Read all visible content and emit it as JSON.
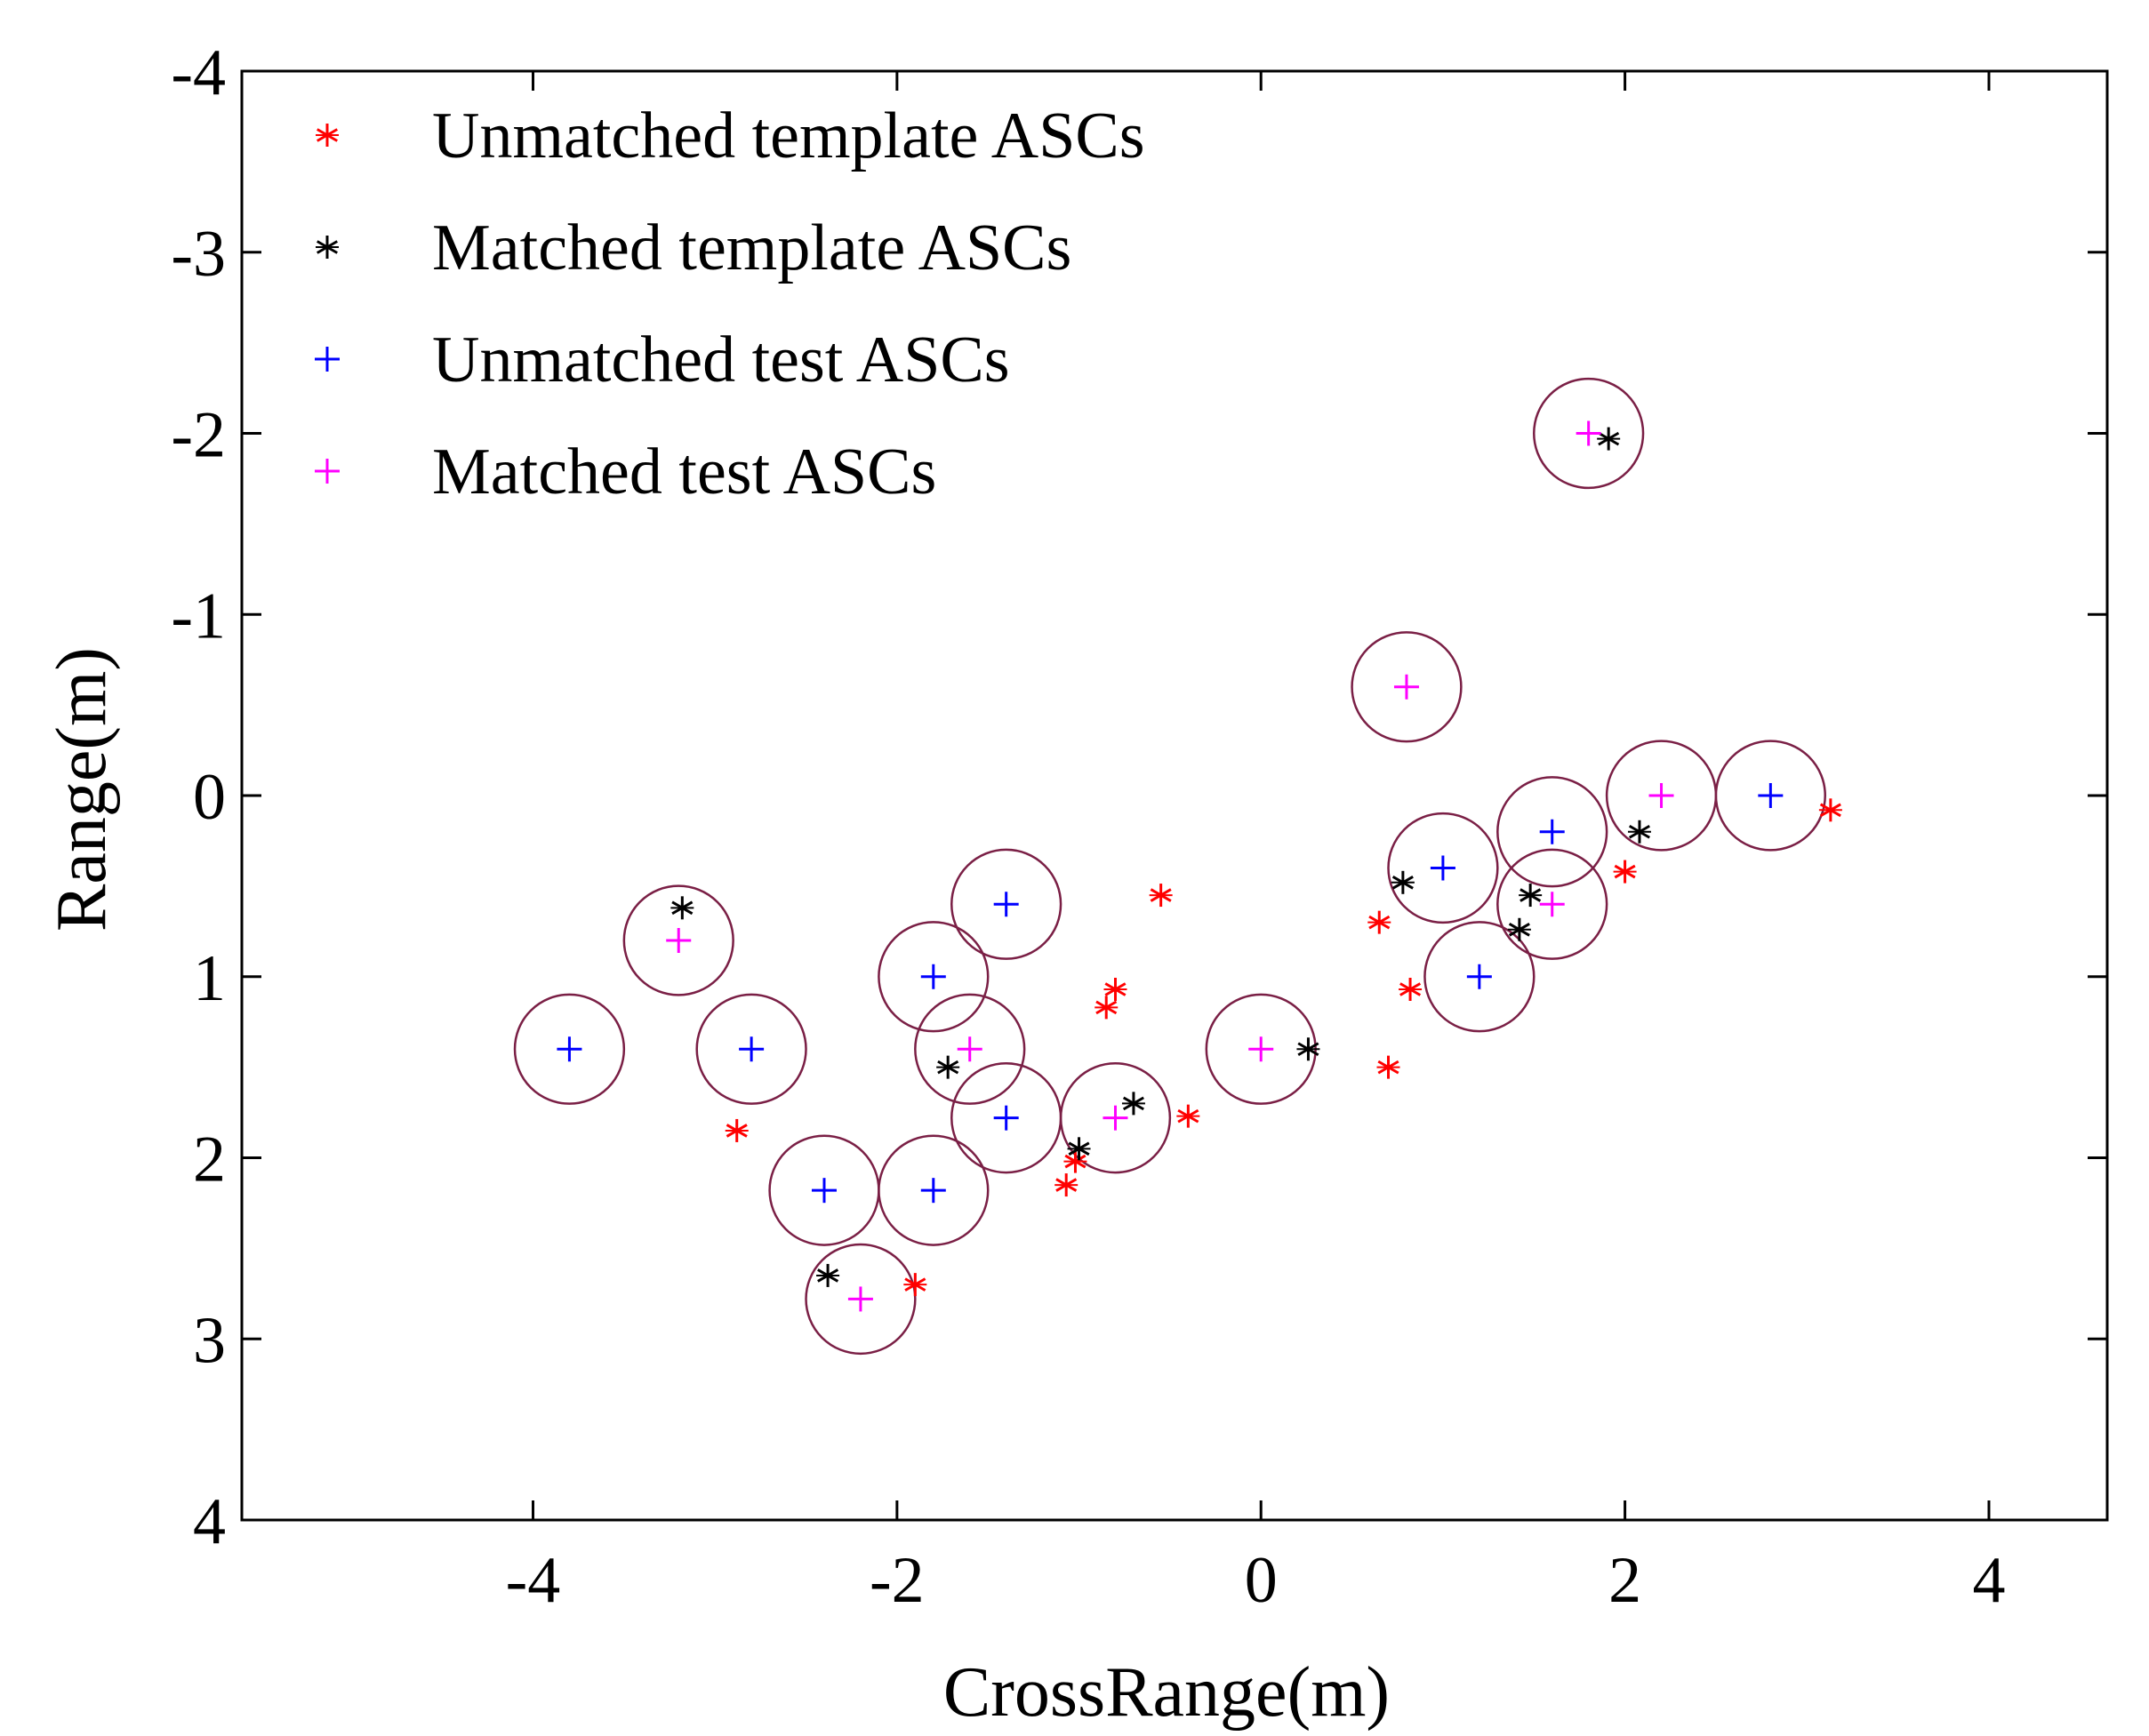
{
  "chart_data": {
    "type": "scatter",
    "title": "",
    "xlabel": "CrossRange(m)",
    "ylabel": "Range(m)",
    "xlim": [
      -5.6,
      4.65
    ],
    "ylim": [
      -4,
      4
    ],
    "y_reversed": true,
    "xticks": [
      -4,
      -2,
      0,
      2,
      4
    ],
    "xtick_labels": [
      "-4",
      "-2",
      "0",
      "2",
      "4"
    ],
    "yticks": [
      -4,
      -3,
      -2,
      -1,
      0,
      1,
      2,
      3,
      4
    ],
    "ytick_labels": [
      "-4",
      "-3",
      "-2",
      "-1",
      "0",
      "1",
      "2",
      "3",
      "4"
    ],
    "grid": false,
    "legend_position": "top-left",
    "circle_radius": 0.3,
    "circle_color": "#7a1f45",
    "series": [
      {
        "name": "Unmatched template ASCs",
        "marker": "asterisk",
        "color": "#ff0000",
        "points": [
          [
            -2.88,
            1.85
          ],
          [
            -1.9,
            2.7
          ],
          [
            -1.07,
            2.15
          ],
          [
            -1.02,
            2.02
          ],
          [
            -0.85,
            1.17
          ],
          [
            -0.8,
            1.07
          ],
          [
            -0.55,
            0.55
          ],
          [
            -0.4,
            1.77
          ],
          [
            0.65,
            0.7
          ],
          [
            0.7,
            1.5
          ],
          [
            0.82,
            1.07
          ],
          [
            2.0,
            0.42
          ],
          [
            3.13,
            0.08
          ]
        ]
      },
      {
        "name": "Matched template ASCs",
        "marker": "asterisk",
        "color": "#000000",
        "points": [
          [
            -3.18,
            0.62
          ],
          [
            -2.38,
            2.65
          ],
          [
            -1.72,
            1.5
          ],
          [
            -1.0,
            1.95
          ],
          [
            -0.7,
            1.7
          ],
          [
            0.26,
            1.4
          ],
          [
            0.78,
            0.48
          ],
          [
            1.48,
            0.55
          ],
          [
            1.42,
            0.74
          ],
          [
            2.08,
            0.2
          ],
          [
            1.91,
            -1.97
          ]
        ]
      },
      {
        "name": "Unmatched test ASCs",
        "marker": "plus",
        "color": "#0000ff",
        "points": [
          [
            -3.8,
            1.4
          ],
          [
            -2.8,
            1.4
          ],
          [
            -2.4,
            2.18
          ],
          [
            -1.8,
            2.18
          ],
          [
            -1.8,
            1.0
          ],
          [
            -1.4,
            0.6
          ],
          [
            -1.4,
            1.78
          ],
          [
            1.0,
            0.4
          ],
          [
            1.2,
            1.0
          ],
          [
            1.6,
            0.2
          ],
          [
            2.8,
            0.0
          ]
        ]
      },
      {
        "name": "Matched test ASCs",
        "marker": "plus",
        "color": "#ff00ff",
        "points": [
          [
            -3.2,
            0.8
          ],
          [
            -2.2,
            2.78
          ],
          [
            -1.6,
            1.4
          ],
          [
            -0.8,
            1.78
          ],
          [
            0.0,
            1.4
          ],
          [
            0.8,
            -0.6
          ],
          [
            1.6,
            0.6
          ],
          [
            2.2,
            0.0
          ],
          [
            1.8,
            -2.0
          ]
        ]
      }
    ]
  }
}
